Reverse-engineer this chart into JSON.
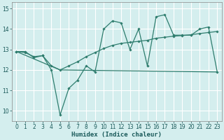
{
  "xlabel": "Humidex (Indice chaleur)",
  "background_color": "#d4eeee",
  "line_color": "#2e7d6e",
  "grid_color": "#b8d8d8",
  "xlim": [
    -0.5,
    23.5
  ],
  "ylim": [
    9.5,
    15.3
  ],
  "yticks": [
    10,
    11,
    12,
    13,
    14,
    15
  ],
  "xticks": [
    0,
    1,
    2,
    3,
    4,
    5,
    6,
    7,
    8,
    9,
    10,
    11,
    12,
    13,
    14,
    15,
    16,
    17,
    18,
    19,
    20,
    21,
    22,
    23
  ],
  "curve1_x": [
    0,
    1,
    2,
    3,
    4,
    5,
    6,
    7,
    8,
    9,
    10,
    11,
    12,
    13,
    14,
    15,
    16,
    17,
    18,
    19,
    20,
    21,
    22,
    23
  ],
  "curve1_y": [
    12.9,
    12.9,
    12.6,
    12.7,
    12.0,
    9.8,
    11.1,
    11.5,
    12.2,
    11.9,
    14.0,
    14.4,
    14.3,
    13.0,
    14.0,
    12.2,
    14.6,
    14.7,
    13.7,
    13.7,
    13.7,
    14.0,
    14.1,
    11.9
  ],
  "curve2_x": [
    0,
    5,
    23
  ],
  "curve2_y": [
    12.9,
    12.0,
    11.9
  ],
  "curve3_x": [
    0,
    1,
    2,
    3,
    4,
    5,
    6,
    7,
    8,
    9,
    10,
    11,
    12,
    13,
    14,
    15,
    16,
    17,
    18,
    19,
    20,
    21,
    22,
    23
  ],
  "curve3_y": [
    12.9,
    12.85,
    12.65,
    12.7,
    12.2,
    12.0,
    12.2,
    12.4,
    12.65,
    12.85,
    13.05,
    13.2,
    13.3,
    13.35,
    13.4,
    13.45,
    13.55,
    13.6,
    13.65,
    13.68,
    13.72,
    13.78,
    13.83,
    13.88
  ]
}
